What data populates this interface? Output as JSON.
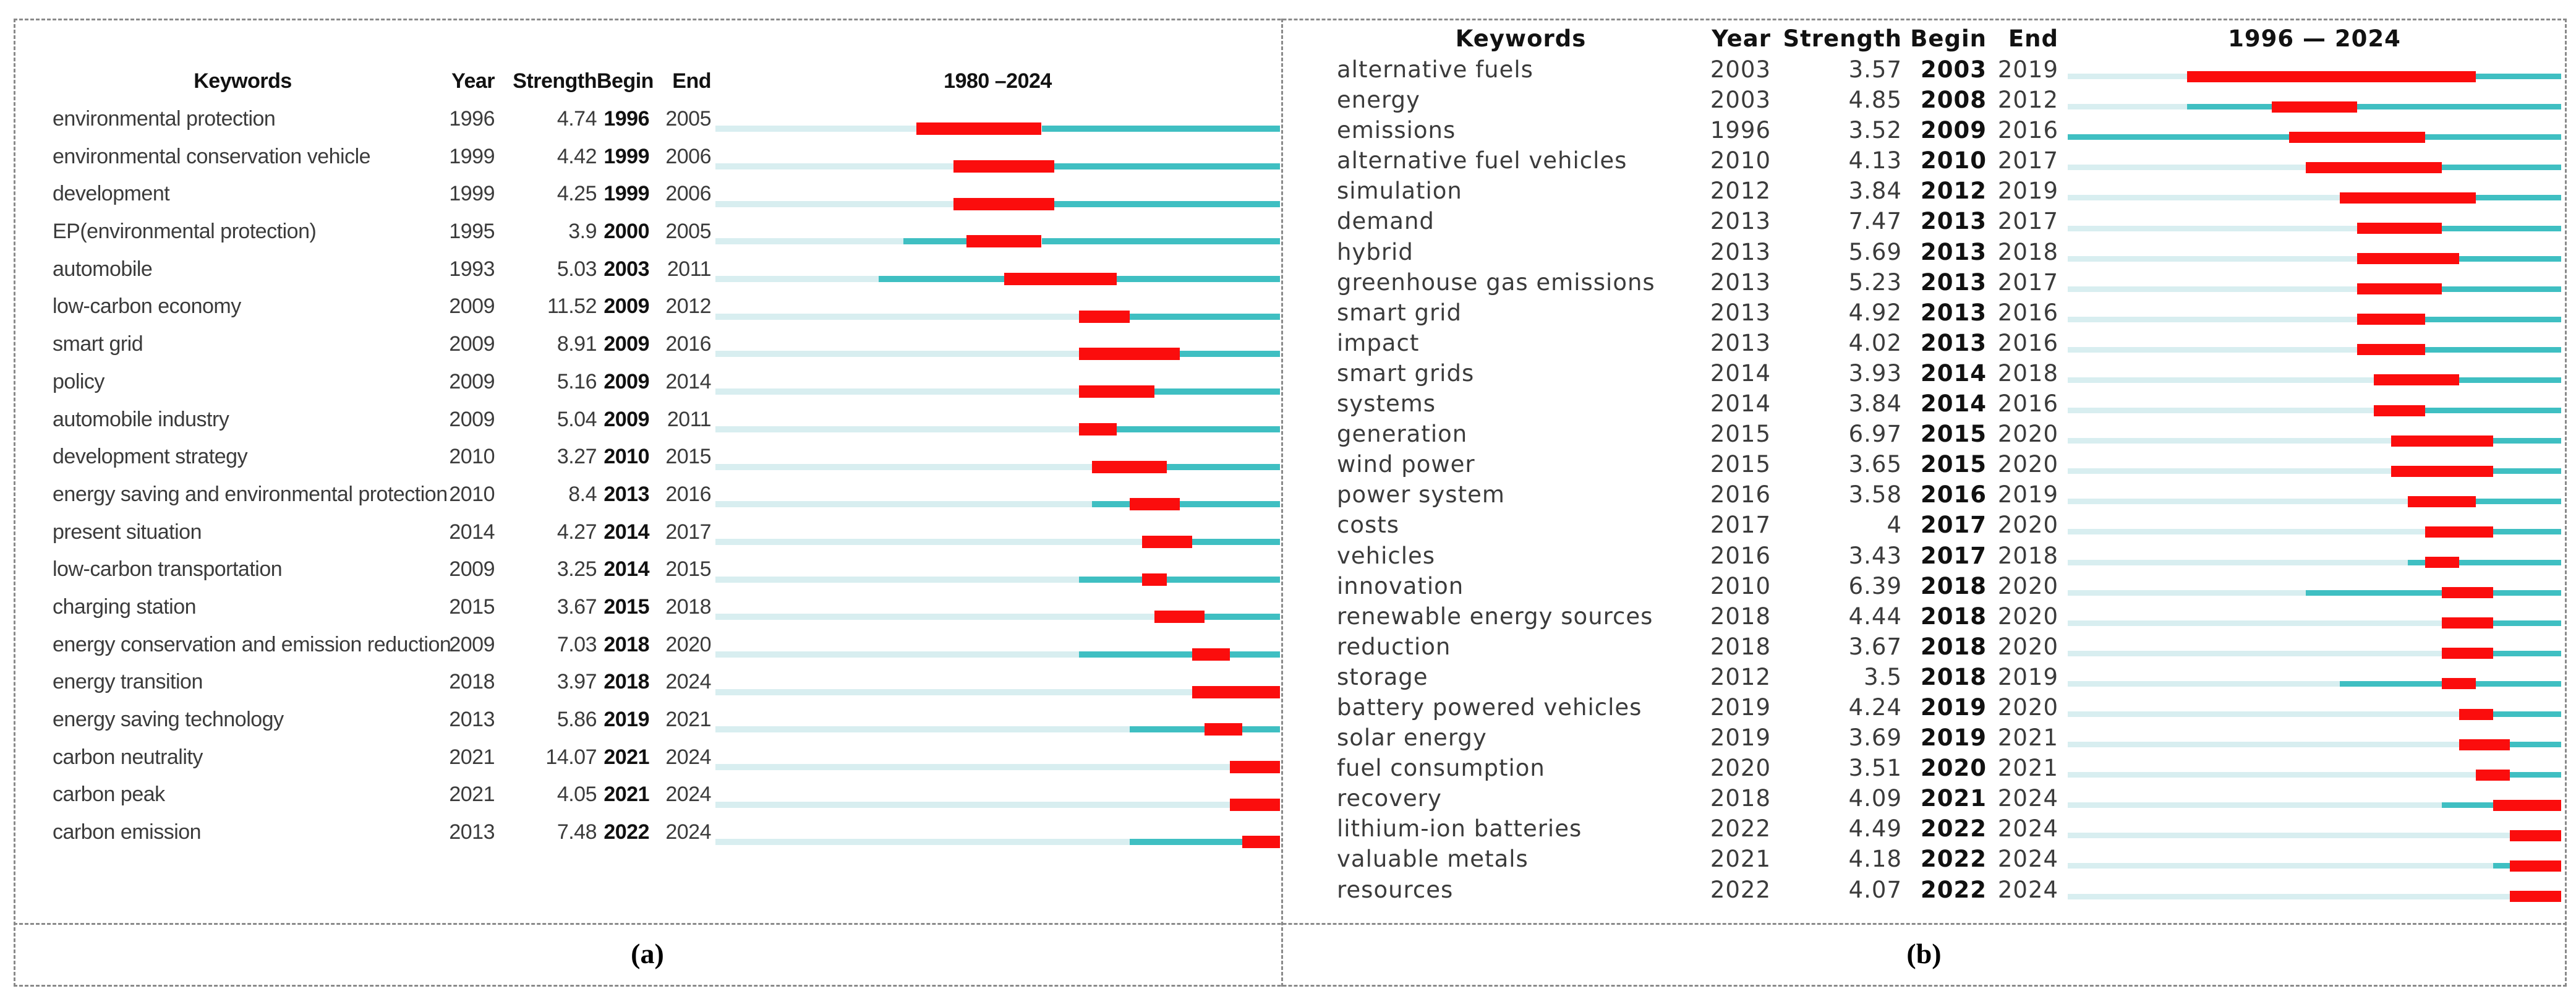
{
  "colors": {
    "burst_red": "#fb0d0d",
    "active_teal": "#3fbfc2",
    "inactive_teal": "#d8eef0",
    "border_gray": "#8a8a8a",
    "text": "#3b3b3b"
  },
  "chart_data": [
    {
      "type": "table",
      "panel": "a",
      "caption": "(a)",
      "title": "1980 –2024",
      "columns": [
        "Keywords",
        "Year",
        "Strength",
        "Begin",
        "End"
      ],
      "timeline": {
        "start": 1980,
        "end": 2024,
        "legend": "light segment = before first appearance, teal segment = active, red segment = citation burst Begin–End"
      },
      "rows": [
        {
          "keyword": "environmental protection",
          "year": 1996,
          "strength": "4.74",
          "begin": 1996,
          "end": 2005
        },
        {
          "keyword": "environmental conservation vehicle",
          "year": 1999,
          "strength": "4.42",
          "begin": 1999,
          "end": 2006
        },
        {
          "keyword": "development",
          "year": 1999,
          "strength": "4.25",
          "begin": 1999,
          "end": 2006
        },
        {
          "keyword": "EP(environmental protection)",
          "year": 1995,
          "strength": "3.9",
          "begin": 2000,
          "end": 2005
        },
        {
          "keyword": "automobile",
          "year": 1993,
          "strength": "5.03",
          "begin": 2003,
          "end": 2011
        },
        {
          "keyword": "low-carbon economy",
          "year": 2009,
          "strength": "11.52",
          "begin": 2009,
          "end": 2012
        },
        {
          "keyword": "smart grid",
          "year": 2009,
          "strength": "8.91",
          "begin": 2009,
          "end": 2016
        },
        {
          "keyword": "policy",
          "year": 2009,
          "strength": "5.16",
          "begin": 2009,
          "end": 2014
        },
        {
          "keyword": "automobile industry",
          "year": 2009,
          "strength": "5.04",
          "begin": 2009,
          "end": 2011
        },
        {
          "keyword": "development strategy",
          "year": 2010,
          "strength": "3.27",
          "begin": 2010,
          "end": 2015
        },
        {
          "keyword": "energy saving and environmental protection",
          "year": 2010,
          "strength": "8.4",
          "begin": 2013,
          "end": 2016
        },
        {
          "keyword": "present situation",
          "year": 2014,
          "strength": "4.27",
          "begin": 2014,
          "end": 2017
        },
        {
          "keyword": "low-carbon transportation",
          "year": 2009,
          "strength": "3.25",
          "begin": 2014,
          "end": 2015
        },
        {
          "keyword": "charging station",
          "year": 2015,
          "strength": "3.67",
          "begin": 2015,
          "end": 2018
        },
        {
          "keyword": "energy conservation and emission reduction",
          "year": 2009,
          "strength": "7.03",
          "begin": 2018,
          "end": 2020
        },
        {
          "keyword": "energy transition",
          "year": 2018,
          "strength": "3.97",
          "begin": 2018,
          "end": 2024
        },
        {
          "keyword": "energy saving technology",
          "year": 2013,
          "strength": "5.86",
          "begin": 2019,
          "end": 2021
        },
        {
          "keyword": "carbon neutrality",
          "year": 2021,
          "strength": "14.07",
          "begin": 2021,
          "end": 2024
        },
        {
          "keyword": "carbon peak",
          "year": 2021,
          "strength": "4.05",
          "begin": 2021,
          "end": 2024
        },
        {
          "keyword": "carbon emission",
          "year": 2013,
          "strength": "7.48",
          "begin": 2022,
          "end": 2024
        }
      ]
    },
    {
      "type": "table",
      "panel": "b",
      "caption": "(b)",
      "title": "1996 — 2024",
      "columns": [
        "Keywords",
        "Year",
        "Strength",
        "Begin",
        "End"
      ],
      "timeline": {
        "start": 1996,
        "end": 2024,
        "legend": "light segment = before first appearance, teal segment = active, red segment = citation burst Begin–End"
      },
      "rows": [
        {
          "keyword": "alternative fuels",
          "year": 2003,
          "strength": "3.57",
          "begin": 2003,
          "end": 2019
        },
        {
          "keyword": "energy",
          "year": 2003,
          "strength": "4.85",
          "begin": 2008,
          "end": 2012
        },
        {
          "keyword": "emissions",
          "year": 1996,
          "strength": "3.52",
          "begin": 2009,
          "end": 2016
        },
        {
          "keyword": "alternative fuel vehicles",
          "year": 2010,
          "strength": "4.13",
          "begin": 2010,
          "end": 2017
        },
        {
          "keyword": "simulation",
          "year": 2012,
          "strength": "3.84",
          "begin": 2012,
          "end": 2019
        },
        {
          "keyword": "demand",
          "year": 2013,
          "strength": "7.47",
          "begin": 2013,
          "end": 2017
        },
        {
          "keyword": "hybrid",
          "year": 2013,
          "strength": "5.69",
          "begin": 2013,
          "end": 2018
        },
        {
          "keyword": "greenhouse gas emissions",
          "year": 2013,
          "strength": "5.23",
          "begin": 2013,
          "end": 2017
        },
        {
          "keyword": "smart grid",
          "year": 2013,
          "strength": "4.92",
          "begin": 2013,
          "end": 2016
        },
        {
          "keyword": "impact",
          "year": 2013,
          "strength": "4.02",
          "begin": 2013,
          "end": 2016
        },
        {
          "keyword": "smart grids",
          "year": 2014,
          "strength": "3.93",
          "begin": 2014,
          "end": 2018
        },
        {
          "keyword": "systems",
          "year": 2014,
          "strength": "3.84",
          "begin": 2014,
          "end": 2016
        },
        {
          "keyword": "generation",
          "year": 2015,
          "strength": "6.97",
          "begin": 2015,
          "end": 2020
        },
        {
          "keyword": "wind power",
          "year": 2015,
          "strength": "3.65",
          "begin": 2015,
          "end": 2020
        },
        {
          "keyword": "power system",
          "year": 2016,
          "strength": "3.58",
          "begin": 2016,
          "end": 2019
        },
        {
          "keyword": "costs",
          "year": 2017,
          "strength": "4",
          "begin": 2017,
          "end": 2020
        },
        {
          "keyword": "vehicles",
          "year": 2016,
          "strength": "3.43",
          "begin": 2017,
          "end": 2018
        },
        {
          "keyword": "innovation",
          "year": 2010,
          "strength": "6.39",
          "begin": 2018,
          "end": 2020
        },
        {
          "keyword": "renewable energy sources",
          "year": 2018,
          "strength": "4.44",
          "begin": 2018,
          "end": 2020
        },
        {
          "keyword": "reduction",
          "year": 2018,
          "strength": "3.67",
          "begin": 2018,
          "end": 2020
        },
        {
          "keyword": "storage",
          "year": 2012,
          "strength": "3.5",
          "begin": 2018,
          "end": 2019
        },
        {
          "keyword": "battery powered vehicles",
          "year": 2019,
          "strength": "4.24",
          "begin": 2019,
          "end": 2020
        },
        {
          "keyword": "solar energy",
          "year": 2019,
          "strength": "3.69",
          "begin": 2019,
          "end": 2021
        },
        {
          "keyword": "fuel consumption",
          "year": 2020,
          "strength": "3.51",
          "begin": 2020,
          "end": 2021
        },
        {
          "keyword": "recovery",
          "year": 2018,
          "strength": "4.09",
          "begin": 2021,
          "end": 2024
        },
        {
          "keyword": "lithium-ion batteries",
          "year": 2022,
          "strength": "4.49",
          "begin": 2022,
          "end": 2024
        },
        {
          "keyword": "valuable metals",
          "year": 2021,
          "strength": "4.18",
          "begin": 2022,
          "end": 2024
        },
        {
          "keyword": "resources",
          "year": 2022,
          "strength": "4.07",
          "begin": 2022,
          "end": 2024
        }
      ]
    }
  ]
}
